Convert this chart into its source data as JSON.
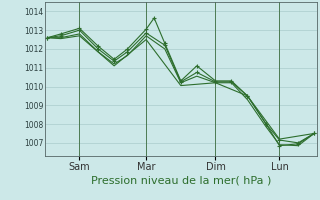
{
  "background_color": "#cce8e8",
  "grid_color": "#aacccc",
  "line_color": "#2d6e2d",
  "title": "Pression niveau de la mer( hPa )",
  "title_fontsize": 8,
  "title_color": "#2d6e2d",
  "yticks": [
    1007,
    1008,
    1009,
    1010,
    1011,
    1012,
    1013,
    1014
  ],
  "ylim": [
    1006.3,
    1014.5
  ],
  "xtick_labels": [
    "Sam",
    "Mar",
    "Dim",
    "Lun"
  ],
  "xtick_positions": [
    0.12,
    0.37,
    0.63,
    0.87
  ],
  "vline_positions": [
    0.12,
    0.37,
    0.63,
    0.87
  ],
  "vline_color": "#336633",
  "series": [
    {
      "x": [
        0.0,
        0.05,
        0.12,
        0.19,
        0.25,
        0.3,
        0.37,
        0.4,
        0.44,
        0.5,
        0.56,
        0.63,
        0.69,
        0.75,
        0.82,
        0.87,
        0.94,
        1.0
      ],
      "y": [
        1012.6,
        1012.8,
        1013.1,
        1012.15,
        1011.45,
        1012.0,
        1013.05,
        1013.65,
        1012.3,
        1010.3,
        1011.1,
        1010.3,
        1010.3,
        1009.5,
        1008.0,
        1007.15,
        1007.0,
        1007.5
      ],
      "marker": true
    },
    {
      "x": [
        0.0,
        0.05,
        0.12,
        0.19,
        0.25,
        0.3,
        0.37,
        0.44,
        0.5,
        0.56,
        0.63,
        0.69,
        0.75,
        0.82,
        0.87,
        0.94,
        1.0
      ],
      "y": [
        1012.6,
        1012.7,
        1013.0,
        1012.0,
        1011.35,
        1011.85,
        1012.85,
        1012.2,
        1010.25,
        1010.75,
        1010.25,
        1010.25,
        1009.5,
        1008.0,
        1006.85,
        1006.95,
        1007.5
      ],
      "marker": true
    },
    {
      "x": [
        0.0,
        0.05,
        0.12,
        0.19,
        0.25,
        0.3,
        0.37,
        0.44,
        0.5,
        0.56,
        0.63,
        0.69,
        0.75,
        0.82,
        0.87,
        0.94,
        1.0
      ],
      "y": [
        1012.6,
        1012.6,
        1012.8,
        1011.85,
        1011.2,
        1011.65,
        1012.7,
        1012.0,
        1010.2,
        1010.55,
        1010.2,
        1010.2,
        1009.3,
        1007.85,
        1006.9,
        1006.85,
        1007.5
      ],
      "marker": false
    },
    {
      "x": [
        0.0,
        0.05,
        0.12,
        0.25,
        0.37,
        0.5,
        0.63,
        0.75,
        0.87,
        1.0
      ],
      "y": [
        1012.6,
        1012.55,
        1012.7,
        1011.1,
        1012.5,
        1010.05,
        1010.2,
        1009.5,
        1007.2,
        1007.5
      ],
      "marker": false
    }
  ]
}
